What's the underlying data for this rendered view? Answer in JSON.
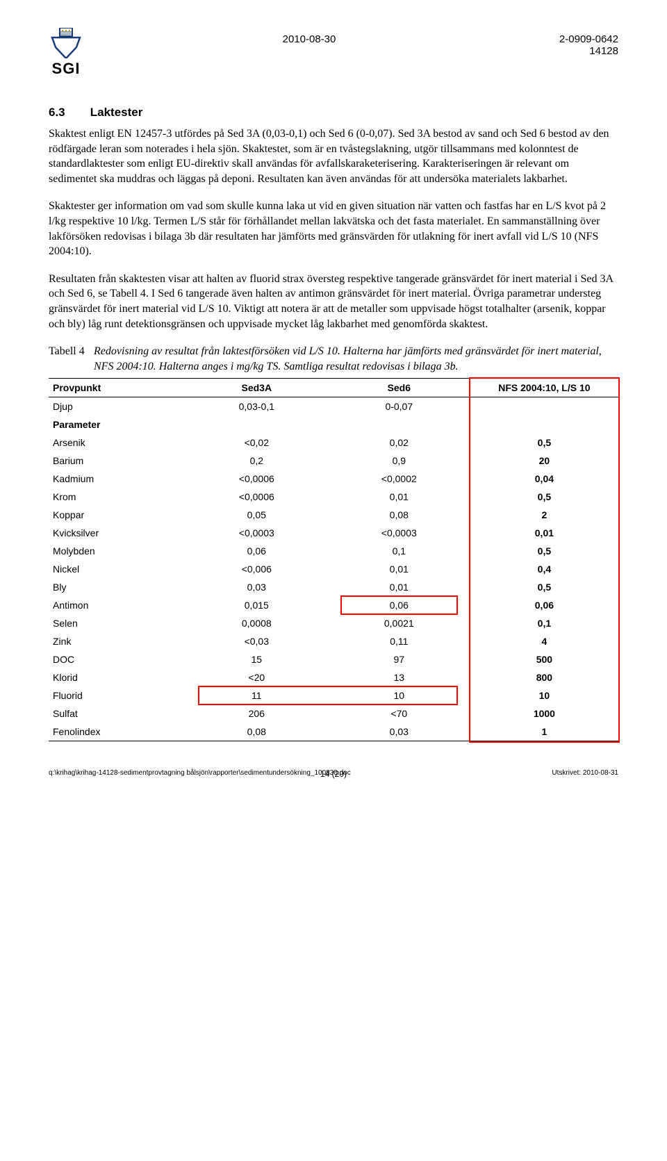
{
  "header": {
    "logo_text": "SGI",
    "date": "2010-08-30",
    "docnum1": "2-0909-0642",
    "docnum2": "14128"
  },
  "section": {
    "num": "6.3",
    "title": "Laktester"
  },
  "paragraphs": {
    "p1": "Skaktest enligt EN 12457-3 utfördes på Sed 3A (0,03-0,1) och Sed 6 (0-0,07). Sed 3A bestod av sand och Sed 6 bestod av den rödfärgade leran som noterades i hela sjön. Skaktestet, som är en tvåstegslakning, utgör tillsammans med kolonntest de standardlaktester som enligt EU-direktiv skall användas för avfallskaraketerisering. Karakteriseringen är relevant om sedimentet ska muddras och läggas på deponi. Resultaten kan även användas för att undersöka materialets lakbarhet.",
    "p2": "Skaktester ger information om vad som skulle kunna laka ut vid en given situation när vatten och fastfas har en L/S kvot på 2 l/kg respektive 10 l/kg. Termen L/S står för förhållandet mellan lakvätska och det fasta materialet. En sammanställning över lakförsöken redovisas i bilaga 3b där resultaten har jämförts med gränsvärden för utlakning för inert avfall vid L/S 10 (NFS 2004:10).",
    "p3": "Resultaten från skaktesten visar att halten av fluorid strax översteg respektive tangerade gränsvärdet för inert material i Sed 3A och Sed 6, se Tabell 4. I Sed 6 tangerade även halten av antimon gränsvärdet för inert material. Övriga parametrar understeg gränsvärdet för inert material vid L/S 10. Viktigt att notera är att de metaller som uppvisade högst totalhalter (arsenik, koppar och bly) låg runt detektionsgränsen och uppvisade mycket låg lakbarhet med genomförda skaktest."
  },
  "tablecaption": {
    "lead": "Tabell 4",
    "text": "Redovisning av resultat från laktestförsöken vid L/S 10. Halterna har jämförts med gränsvärdet för inert material, NFS 2004:10. Halterna anges i mg/kg TS. Samtliga resultat redovisas i bilaga 3b."
  },
  "table": {
    "headers": {
      "c0": "Provpunkt",
      "c1": "Sed3A",
      "c2": "Sed6",
      "c3": "NFS 2004:10, L/S 10"
    },
    "rows": [
      {
        "p": "Djup",
        "a": "0,03-0,1",
        "b": "0-0,07",
        "c": ""
      },
      {
        "p": "Parameter",
        "a": "",
        "b": "",
        "c": ""
      },
      {
        "p": "Arsenik",
        "a": "<0,02",
        "b": "0,02",
        "c": "0,5"
      },
      {
        "p": "Barium",
        "a": "0,2",
        "b": "0,9",
        "c": "20"
      },
      {
        "p": "Kadmium",
        "a": "<0,0006",
        "b": "<0,0002",
        "c": "0,04"
      },
      {
        "p": "Krom",
        "a": "<0,0006",
        "b": "0,01",
        "c": "0,5"
      },
      {
        "p": "Koppar",
        "a": "0,05",
        "b": "0,08",
        "c": "2"
      },
      {
        "p": "Kvicksilver",
        "a": "<0,0003",
        "b": "<0,0003",
        "c": "0,01"
      },
      {
        "p": "Molybden",
        "a": "0,06",
        "b": "0,1",
        "c": "0,5"
      },
      {
        "p": "Nickel",
        "a": "<0,006",
        "b": "0,01",
        "c": "0,4"
      },
      {
        "p": "Bly",
        "a": "0,03",
        "b": "0,01",
        "c": "0,5"
      },
      {
        "p": "Antimon",
        "a": "0,015",
        "b": "0,06",
        "c": "0,06"
      },
      {
        "p": "Selen",
        "a": "0,0008",
        "b": "0,0021",
        "c": "0,1"
      },
      {
        "p": "Zink",
        "a": "<0,03",
        "b": "0,11",
        "c": "4"
      },
      {
        "p": "DOC",
        "a": "15",
        "b": "97",
        "c": "500"
      },
      {
        "p": "Klorid",
        "a": "<20",
        "b": "13",
        "c": "800"
      },
      {
        "p": "Fluorid",
        "a": "11",
        "b": "10",
        "c": "10"
      },
      {
        "p": "Sulfat",
        "a": "206",
        "b": "<70",
        "c": "1000"
      },
      {
        "p": "Fenolindex",
        "a": "0,08",
        "b": "0,03",
        "c": "1"
      }
    ]
  },
  "footer": {
    "left": "q:\\krihag\\krihag-14128-sedimentprovtagning bålsjön\\rapporter\\sedimentundersökning_100830.doc",
    "center": "14 (20)",
    "right": "Utskrivet: 2010-08-31"
  },
  "highlight": {
    "border_color": "#ff0000"
  }
}
